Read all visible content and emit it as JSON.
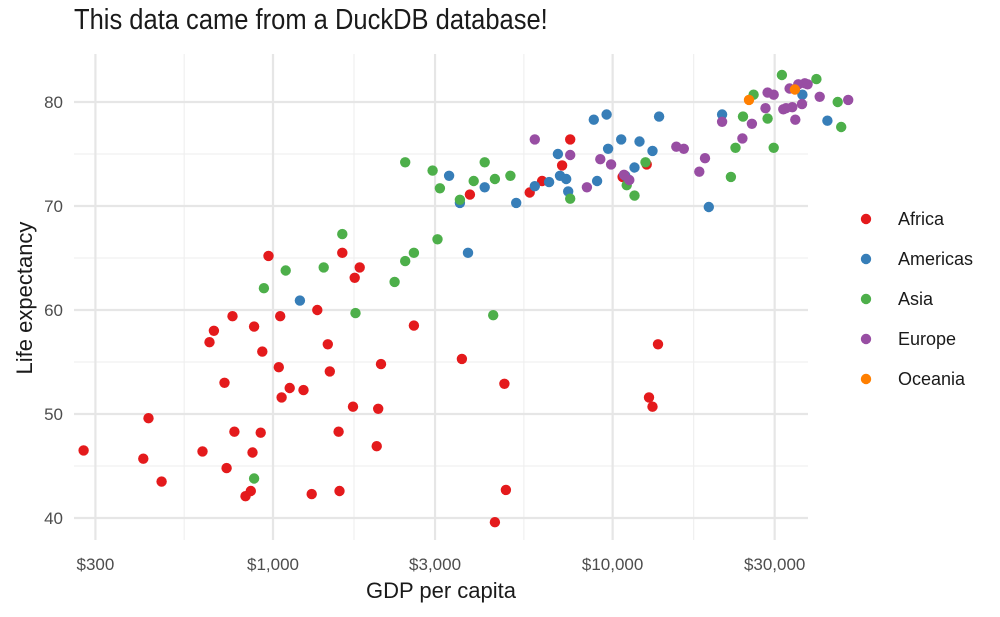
{
  "chart_data": {
    "type": "scatter",
    "title": "This data came from a DuckDB database!",
    "xlabel": "GDP per capita",
    "ylabel": "Life expectancy",
    "x_scale": "log10",
    "xlim": [
      250,
      70000
    ],
    "ylim": [
      38.5,
      84.5
    ],
    "x_ticks": [
      300,
      1000,
      3000,
      10000,
      30000
    ],
    "x_tick_labels": [
      "$300",
      "$1,000",
      "$3,000",
      "$10,000",
      "$30,000"
    ],
    "y_ticks": [
      40,
      50,
      60,
      70,
      80
    ],
    "y_tick_labels": [
      "40",
      "50",
      "60",
      "70",
      "80"
    ],
    "grid": true,
    "legend_position": "right",
    "series": [
      {
        "name": "Africa",
        "color": "#e41a1c",
        "points": [
          [
            277,
            46.5
          ],
          [
            415,
            45.7
          ],
          [
            430,
            49.6
          ],
          [
            470,
            43.5
          ],
          [
            620,
            46.4
          ],
          [
            650,
            56.9
          ],
          [
            670,
            58.0
          ],
          [
            720,
            53.0
          ],
          [
            730,
            44.8
          ],
          [
            760,
            59.4
          ],
          [
            770,
            48.3
          ],
          [
            830,
            42.1
          ],
          [
            860,
            42.6
          ],
          [
            870,
            46.3
          ],
          [
            880,
            58.4
          ],
          [
            920,
            48.2
          ],
          [
            930,
            56.0
          ],
          [
            970,
            65.2
          ],
          [
            1040,
            54.5
          ],
          [
            1050,
            59.4
          ],
          [
            1060,
            51.6
          ],
          [
            1120,
            52.5
          ],
          [
            1230,
            52.3
          ],
          [
            1300,
            42.3
          ],
          [
            1350,
            60.0
          ],
          [
            1450,
            56.7
          ],
          [
            1470,
            54.1
          ],
          [
            1560,
            48.3
          ],
          [
            1570,
            42.6
          ],
          [
            1600,
            65.5
          ],
          [
            1720,
            50.7
          ],
          [
            1740,
            63.1
          ],
          [
            1800,
            64.1
          ],
          [
            2020,
            46.9
          ],
          [
            2040,
            50.5
          ],
          [
            2080,
            54.8
          ],
          [
            2600,
            58.5
          ],
          [
            3600,
            55.3
          ],
          [
            3800,
            71.1
          ],
          [
            4500,
            39.6
          ],
          [
            4800,
            52.9
          ],
          [
            4850,
            42.7
          ],
          [
            5700,
            71.3
          ],
          [
            6200,
            72.4
          ],
          [
            7100,
            73.9
          ],
          [
            7500,
            76.4
          ],
          [
            10700,
            72.8
          ],
          [
            12600,
            74.0
          ],
          [
            12800,
            51.6
          ],
          [
            13100,
            50.7
          ],
          [
            13600,
            56.7
          ]
        ]
      },
      {
        "name": "Americas",
        "color": "#377eb8",
        "points": [
          [
            1200,
            60.9
          ],
          [
            3300,
            72.9
          ],
          [
            3550,
            70.3
          ],
          [
            3750,
            65.5
          ],
          [
            4200,
            71.8
          ],
          [
            5200,
            70.3
          ],
          [
            5900,
            71.9
          ],
          [
            6500,
            72.3
          ],
          [
            6900,
            75.0
          ],
          [
            7000,
            72.9
          ],
          [
            7300,
            72.6
          ],
          [
            7400,
            71.4
          ],
          [
            8800,
            78.3
          ],
          [
            9000,
            72.4
          ],
          [
            9600,
            78.8
          ],
          [
            9700,
            75.5
          ],
          [
            10600,
            76.4
          ],
          [
            10900,
            72.9
          ],
          [
            11600,
            73.7
          ],
          [
            12000,
            76.2
          ],
          [
            13100,
            75.3
          ],
          [
            13700,
            78.6
          ],
          [
            19200,
            69.9
          ],
          [
            21000,
            78.8
          ],
          [
            36200,
            80.7
          ],
          [
            42900,
            78.2
          ]
        ]
      },
      {
        "name": "Asia",
        "color": "#4daf4a",
        "points": [
          [
            880,
            43.8
          ],
          [
            940,
            62.1
          ],
          [
            1090,
            63.8
          ],
          [
            1410,
            64.1
          ],
          [
            1600,
            67.3
          ],
          [
            1750,
            59.7
          ],
          [
            2280,
            62.7
          ],
          [
            2450,
            74.2
          ],
          [
            2450,
            64.7
          ],
          [
            2600,
            65.5
          ],
          [
            2950,
            73.4
          ],
          [
            3050,
            66.8
          ],
          [
            3100,
            71.7
          ],
          [
            3550,
            70.6
          ],
          [
            3900,
            72.4
          ],
          [
            4200,
            74.2
          ],
          [
            4450,
            59.5
          ],
          [
            4500,
            72.6
          ],
          [
            5000,
            72.9
          ],
          [
            7500,
            70.7
          ],
          [
            11000,
            72.0
          ],
          [
            11600,
            71.0
          ],
          [
            12500,
            74.2
          ],
          [
            22300,
            72.8
          ],
          [
            23000,
            75.6
          ],
          [
            24200,
            78.6
          ],
          [
            26000,
            80.7
          ],
          [
            28600,
            78.4
          ],
          [
            29800,
            75.6
          ],
          [
            31500,
            82.6
          ],
          [
            39800,
            82.2
          ],
          [
            46000,
            80.0
          ],
          [
            47100,
            77.6
          ]
        ]
      },
      {
        "name": "Europe",
        "color": "#984ea3",
        "points": [
          [
            5900,
            76.4
          ],
          [
            7500,
            74.9
          ],
          [
            8400,
            71.8
          ],
          [
            9200,
            74.5
          ],
          [
            9900,
            74.0
          ],
          [
            10800,
            73.0
          ],
          [
            11200,
            72.5
          ],
          [
            15400,
            75.7
          ],
          [
            16200,
            75.5
          ],
          [
            18000,
            73.3
          ],
          [
            18700,
            74.6
          ],
          [
            21000,
            78.1
          ],
          [
            24100,
            76.5
          ],
          [
            25700,
            77.9
          ],
          [
            28200,
            79.4
          ],
          [
            28600,
            80.9
          ],
          [
            29800,
            80.7
          ],
          [
            31800,
            79.3
          ],
          [
            32400,
            79.4
          ],
          [
            33200,
            81.3
          ],
          [
            33800,
            79.5
          ],
          [
            34500,
            78.3
          ],
          [
            35200,
            81.7
          ],
          [
            36100,
            79.8
          ],
          [
            36800,
            81.8
          ],
          [
            37500,
            81.7
          ],
          [
            40700,
            80.5
          ],
          [
            49400,
            80.2
          ]
        ]
      },
      {
        "name": "Oceania",
        "color": "#ff7f00",
        "points": [
          [
            25200,
            80.2
          ],
          [
            34400,
            81.2
          ]
        ]
      }
    ]
  }
}
